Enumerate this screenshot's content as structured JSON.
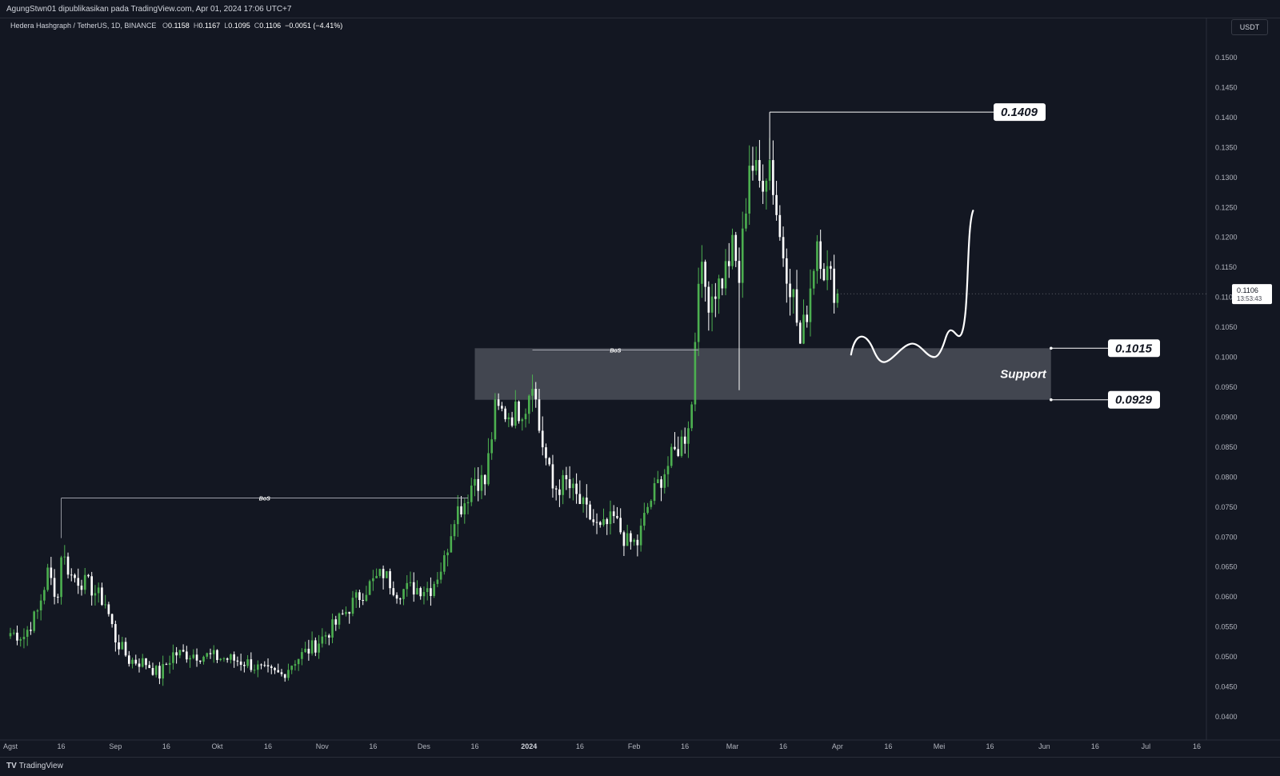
{
  "header": {
    "publish_line": "AgungStwn01 dipublikasikan pada TradingView.com, Apr 01, 2024 17:06 UTC+7"
  },
  "legend": {
    "symbol": "Hedera Hashgraph / TetherUS, 1D, BINANCE",
    "o_label": "O",
    "o_value": "0.1158",
    "h_label": "H",
    "h_value": "0.1167",
    "l_label": "L",
    "l_value": "0.1095",
    "c_label": "C",
    "c_value": "0.1106",
    "change": "−0.0051 (−4.41%)"
  },
  "price_unit": "USDT",
  "last_price": {
    "value": "0.1106",
    "countdown": "13:53:43"
  },
  "footer": {
    "brand": "TradingView",
    "brand_mark": "TV"
  },
  "colors": {
    "background": "#131722",
    "up_candle": "#4caf50",
    "down_candle": "#ffffff",
    "support_zone": "#d1d4dc",
    "drawing": "#ffffff"
  },
  "chart_data": {
    "type": "candlestick",
    "ylim": [
      0.036,
      0.155
    ],
    "y_ticks": [
      "0.1500",
      "0.1450",
      "0.1400",
      "0.1350",
      "0.1300",
      "0.1250",
      "0.1200",
      "0.1150",
      "0.1100",
      "0.1050",
      "0.1000",
      "0.0950",
      "0.0900",
      "0.0850",
      "0.0800",
      "0.0750",
      "0.0700",
      "0.0650",
      "0.0600",
      "0.0550",
      "0.0500",
      "0.0450",
      "0.0400"
    ],
    "x_ticks": [
      {
        "label": "Agst",
        "date": "2023-08-01"
      },
      {
        "label": "16",
        "date": "2023-08-16"
      },
      {
        "label": "Sep",
        "date": "2023-09-01"
      },
      {
        "label": "16",
        "date": "2023-09-16"
      },
      {
        "label": "Okt",
        "date": "2023-10-01"
      },
      {
        "label": "16",
        "date": "2023-10-16"
      },
      {
        "label": "Nov",
        "date": "2023-11-01"
      },
      {
        "label": "16",
        "date": "2023-11-16"
      },
      {
        "label": "Des",
        "date": "2023-12-01"
      },
      {
        "label": "16",
        "date": "2023-12-16"
      },
      {
        "label": "2024",
        "date": "2024-01-01"
      },
      {
        "label": "16",
        "date": "2024-01-16"
      },
      {
        "label": "Feb",
        "date": "2024-02-01"
      },
      {
        "label": "16",
        "date": "2024-02-16"
      },
      {
        "label": "Mar",
        "date": "2024-03-01"
      },
      {
        "label": "16",
        "date": "2024-03-16"
      },
      {
        "label": "Apr",
        "date": "2024-04-01"
      },
      {
        "label": "16",
        "date": "2024-04-16"
      },
      {
        "label": "Mei",
        "date": "2024-05-01"
      },
      {
        "label": "16",
        "date": "2024-05-16"
      },
      {
        "label": "Jun",
        "date": "2024-06-01"
      },
      {
        "label": "16",
        "date": "2024-06-16"
      },
      {
        "label": "Jul",
        "date": "2024-07-01"
      },
      {
        "label": "16",
        "date": "2024-07-16"
      }
    ],
    "anchors": [
      [
        "2023-08-01",
        0.054
      ],
      [
        "2023-08-05",
        0.0535
      ],
      [
        "2023-08-09",
        0.0575
      ],
      [
        "2023-08-12",
        0.064
      ],
      [
        "2023-08-15",
        0.06
      ],
      [
        "2023-08-16",
        0.0675
      ],
      [
        "2023-08-19",
        0.0635
      ],
      [
        "2023-08-24",
        0.062
      ],
      [
        "2023-08-29",
        0.059
      ],
      [
        "2023-09-01",
        0.053
      ],
      [
        "2023-09-05",
        0.0495
      ],
      [
        "2023-09-10",
        0.049
      ],
      [
        "2023-09-14",
        0.047
      ],
      [
        "2023-09-18",
        0.0505
      ],
      [
        "2023-09-24",
        0.0505
      ],
      [
        "2023-09-30",
        0.05
      ],
      [
        "2023-10-06",
        0.0495
      ],
      [
        "2023-10-10",
        0.049
      ],
      [
        "2023-10-15",
        0.0475
      ],
      [
        "2023-10-20",
        0.047
      ],
      [
        "2023-10-24",
        0.0495
      ],
      [
        "2023-10-30",
        0.052
      ],
      [
        "2023-11-05",
        0.0555
      ],
      [
        "2023-11-10",
        0.059
      ],
      [
        "2023-11-15",
        0.062
      ],
      [
        "2023-11-19",
        0.064
      ],
      [
        "2023-11-23",
        0.061
      ],
      [
        "2023-11-28",
        0.0615
      ],
      [
        "2023-12-03",
        0.0615
      ],
      [
        "2023-12-07",
        0.066
      ],
      [
        "2023-12-10",
        0.074
      ],
      [
        "2023-12-13",
        0.076
      ],
      [
        "2023-12-16",
        0.08
      ],
      [
        "2023-12-19",
        0.079
      ],
      [
        "2023-12-22",
        0.091
      ],
      [
        "2023-12-27",
        0.0905
      ],
      [
        "2023-12-31",
        0.092
      ],
      [
        "2024-01-02",
        0.097
      ],
      [
        "2024-01-04",
        0.088
      ],
      [
        "2024-01-08",
        0.078
      ],
      [
        "2024-01-12",
        0.079
      ],
      [
        "2024-01-18",
        0.074
      ],
      [
        "2024-01-22",
        0.071
      ],
      [
        "2024-01-26",
        0.073
      ],
      [
        "2024-01-30",
        0.069
      ],
      [
        "2024-02-02",
        0.069
      ],
      [
        "2024-02-05",
        0.075
      ],
      [
        "2024-02-09",
        0.08
      ],
      [
        "2024-02-13",
        0.084
      ],
      [
        "2024-02-16",
        0.087
      ],
      [
        "2024-02-18",
        0.092
      ],
      [
        "2024-02-20",
        0.115
      ],
      [
        "2024-02-23",
        0.11
      ],
      [
        "2024-02-27",
        0.113
      ],
      [
        "2024-03-01",
        0.118
      ],
      [
        "2024-03-03",
        0.113
      ],
      [
        "2024-03-05",
        0.126
      ],
      [
        "2024-03-06",
        0.133
      ],
      [
        "2024-03-09",
        0.129
      ],
      [
        "2024-03-12",
        0.133
      ],
      [
        "2024-03-15",
        0.12
      ],
      [
        "2024-03-19",
        0.11
      ],
      [
        "2024-03-21",
        0.102
      ],
      [
        "2024-03-23",
        0.108
      ],
      [
        "2024-03-26",
        0.12
      ],
      [
        "2024-03-28",
        0.115
      ],
      [
        "2024-04-01",
        0.1106
      ]
    ],
    "annotations": {
      "high_label": "0.1409",
      "high_value": 0.1409,
      "high_date": "2024-03-12",
      "support_label": "Support",
      "support_top_label": "0.1015",
      "support_top": 0.1015,
      "support_bottom_label": "0.0929",
      "support_bottom": 0.0929,
      "support_start": "2023-12-16",
      "support_end": "2024-06-03",
      "bos_text": "BoS",
      "bos_1": {
        "price": 0.0765,
        "from": "2023-08-16",
        "to": "2023-12-14"
      },
      "bos_2": {
        "price": 0.1012,
        "from": "2024-01-02",
        "to": "2024-02-20"
      },
      "projection_start": "2024-04-05",
      "projection_end": "2024-05-11"
    }
  }
}
